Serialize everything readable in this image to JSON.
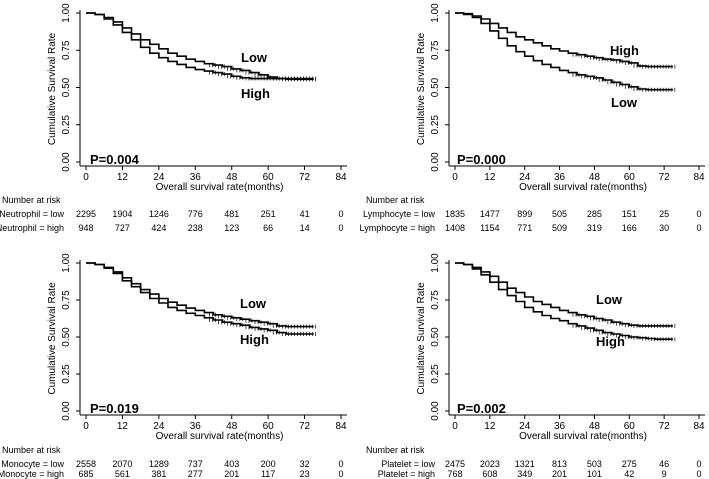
{
  "chart_data": [
    {
      "type": "line",
      "title": "",
      "xlabel": "Overall survival rate(months)",
      "ylabel": "Cumulative Survival Rate",
      "xlim": [
        0,
        84
      ],
      "ylim": [
        0,
        1
      ],
      "x_ticks": [
        "0",
        "12",
        "24",
        "36",
        "48",
        "60",
        "72",
        "84"
      ],
      "y_ticks": [
        "0.00",
        "0.25",
        "0.50",
        "0.75",
        "1.00"
      ],
      "p_value": "P=0.004",
      "series": [
        {
          "name": "Low",
          "label": "Low",
          "x": [
            0,
            3,
            6,
            9,
            12,
            15,
            18,
            21,
            24,
            27,
            30,
            33,
            36,
            39,
            42,
            45,
            48,
            51,
            54,
            57,
            60,
            63,
            66,
            69,
            72,
            75
          ],
          "y": [
            1.0,
            0.99,
            0.97,
            0.94,
            0.9,
            0.86,
            0.82,
            0.79,
            0.76,
            0.73,
            0.71,
            0.69,
            0.675,
            0.66,
            0.65,
            0.64,
            0.625,
            0.615,
            0.6,
            0.585,
            0.57,
            0.56,
            0.555,
            0.555,
            0.555,
            0.555
          ]
        },
        {
          "name": "High",
          "label": "High",
          "x": [
            0,
            3,
            6,
            9,
            12,
            15,
            18,
            21,
            24,
            27,
            30,
            33,
            36,
            39,
            42,
            45,
            48,
            51,
            54,
            57,
            60,
            63,
            66,
            69,
            72,
            75
          ],
          "y": [
            1.0,
            0.99,
            0.96,
            0.92,
            0.87,
            0.82,
            0.77,
            0.73,
            0.7,
            0.675,
            0.655,
            0.635,
            0.62,
            0.61,
            0.6,
            0.59,
            0.575,
            0.565,
            0.56,
            0.56,
            0.56,
            0.56,
            0.56,
            0.56,
            0.56,
            0.56
          ]
        }
      ],
      "risk_table": {
        "header": "Number at risk",
        "rows": [
          {
            "label": "Neutrophil = low",
            "counts": [
              "2295",
              "1904",
              "1246",
              "776",
              "481",
              "251",
              "41",
              "0"
            ]
          },
          {
            "label": "Neutrophil = high",
            "counts": [
              "948",
              "727",
              "424",
              "238",
              "123",
              "66",
              "14",
              "0"
            ]
          }
        ]
      }
    },
    {
      "type": "line",
      "title": "",
      "xlabel": "Overall survival rate(months)",
      "ylabel": "Cumulative Survival Rate",
      "xlim": [
        0,
        84
      ],
      "ylim": [
        0,
        1
      ],
      "x_ticks": [
        "0",
        "12",
        "24",
        "36",
        "48",
        "60",
        "72",
        "84"
      ],
      "y_ticks": [
        "0.00",
        "0.25",
        "0.50",
        "0.75",
        "1.00"
      ],
      "p_value": "P=0.000",
      "series": [
        {
          "name": "High",
          "label": "High",
          "x": [
            0,
            3,
            6,
            9,
            12,
            15,
            18,
            21,
            24,
            27,
            30,
            33,
            36,
            39,
            42,
            45,
            48,
            51,
            54,
            57,
            60,
            63,
            66,
            69,
            72,
            75
          ],
          "y": [
            1.0,
            0.995,
            0.98,
            0.96,
            0.93,
            0.9,
            0.87,
            0.84,
            0.82,
            0.8,
            0.78,
            0.76,
            0.745,
            0.73,
            0.72,
            0.71,
            0.7,
            0.69,
            0.685,
            0.675,
            0.665,
            0.645,
            0.64,
            0.64,
            0.64,
            0.64
          ]
        },
        {
          "name": "Low",
          "label": "Low",
          "x": [
            0,
            3,
            6,
            9,
            12,
            15,
            18,
            21,
            24,
            27,
            30,
            33,
            36,
            39,
            42,
            45,
            48,
            51,
            54,
            57,
            60,
            63,
            66,
            69,
            72,
            75
          ],
          "y": [
            1.0,
            0.99,
            0.97,
            0.93,
            0.88,
            0.83,
            0.78,
            0.74,
            0.71,
            0.68,
            0.655,
            0.635,
            0.615,
            0.6,
            0.585,
            0.575,
            0.565,
            0.55,
            0.535,
            0.52,
            0.505,
            0.49,
            0.485,
            0.485,
            0.485,
            0.485
          ]
        }
      ],
      "risk_table": {
        "header": "Number at risk",
        "rows": [
          {
            "label": "Lymphocyte = low",
            "counts": [
              "1835",
              "1477",
              "899",
              "505",
              "285",
              "151",
              "25",
              "0"
            ]
          },
          {
            "label": "Lymphocyte = high",
            "counts": [
              "1408",
              "1154",
              "771",
              "509",
              "319",
              "166",
              "30",
              "0"
            ]
          }
        ]
      }
    },
    {
      "type": "line",
      "title": "",
      "xlabel": "Overall survival rate(months)",
      "ylabel": "Cumulative Survival Rate",
      "xlim": [
        0,
        84
      ],
      "ylim": [
        0,
        1
      ],
      "x_ticks": [
        "0",
        "12",
        "24",
        "36",
        "48",
        "60",
        "72",
        "84"
      ],
      "y_ticks": [
        "0.00",
        "0.25",
        "0.50",
        "0.75",
        "1.00"
      ],
      "p_value": "P=0.019",
      "series": [
        {
          "name": "Low",
          "label": "Low",
          "x": [
            0,
            3,
            6,
            9,
            12,
            15,
            18,
            21,
            24,
            27,
            30,
            33,
            36,
            39,
            42,
            45,
            48,
            51,
            54,
            57,
            60,
            63,
            66,
            69,
            72,
            75
          ],
          "y": [
            1.0,
            0.99,
            0.97,
            0.94,
            0.9,
            0.86,
            0.82,
            0.79,
            0.76,
            0.735,
            0.715,
            0.695,
            0.68,
            0.665,
            0.65,
            0.64,
            0.63,
            0.62,
            0.61,
            0.6,
            0.59,
            0.575,
            0.57,
            0.57,
            0.57,
            0.57
          ]
        },
        {
          "name": "High",
          "label": "High",
          "x": [
            0,
            3,
            6,
            9,
            12,
            15,
            18,
            21,
            24,
            27,
            30,
            33,
            36,
            39,
            42,
            45,
            48,
            51,
            54,
            57,
            60,
            63,
            66,
            69,
            72,
            75
          ],
          "y": [
            1.0,
            0.99,
            0.965,
            0.93,
            0.88,
            0.84,
            0.8,
            0.76,
            0.73,
            0.7,
            0.68,
            0.66,
            0.645,
            0.63,
            0.615,
            0.6,
            0.59,
            0.58,
            0.565,
            0.555,
            0.545,
            0.53,
            0.52,
            0.52,
            0.52,
            0.52
          ]
        }
      ],
      "risk_table": {
        "header": "Number at risk",
        "rows": [
          {
            "label": "Monocyte = low",
            "counts": [
              "2558",
              "2070",
              "1289",
              "737",
              "403",
              "200",
              "32",
              "0"
            ]
          },
          {
            "label": "Monocyte = high",
            "counts": [
              "685",
              "561",
              "381",
              "277",
              "201",
              "117",
              "23",
              "0"
            ]
          }
        ]
      }
    },
    {
      "type": "line",
      "title": "",
      "xlabel": "Overall survival rate(months)",
      "ylabel": "Cumulative Survival Rate",
      "xlim": [
        0,
        84
      ],
      "ylim": [
        0,
        1
      ],
      "x_ticks": [
        "0",
        "12",
        "24",
        "36",
        "48",
        "60",
        "72",
        "84"
      ],
      "y_ticks": [
        "0.00",
        "0.25",
        "0.50",
        "0.75",
        "1.00"
      ],
      "p_value": "P=0.002",
      "series": [
        {
          "name": "Low",
          "label": "Low",
          "x": [
            0,
            3,
            6,
            9,
            12,
            15,
            18,
            21,
            24,
            27,
            30,
            33,
            36,
            39,
            42,
            45,
            48,
            51,
            54,
            57,
            60,
            63,
            66,
            69,
            72,
            75
          ],
          "y": [
            1.0,
            0.99,
            0.97,
            0.94,
            0.91,
            0.87,
            0.83,
            0.8,
            0.77,
            0.74,
            0.72,
            0.7,
            0.68,
            0.665,
            0.65,
            0.64,
            0.625,
            0.615,
            0.6,
            0.59,
            0.58,
            0.575,
            0.575,
            0.575,
            0.575,
            0.575
          ]
        },
        {
          "name": "High",
          "label": "High",
          "x": [
            0,
            3,
            6,
            9,
            12,
            15,
            18,
            21,
            24,
            27,
            30,
            33,
            36,
            39,
            42,
            45,
            48,
            51,
            54,
            57,
            60,
            63,
            66,
            69,
            72,
            75
          ],
          "y": [
            1.0,
            0.99,
            0.96,
            0.92,
            0.87,
            0.82,
            0.78,
            0.74,
            0.7,
            0.67,
            0.645,
            0.625,
            0.61,
            0.59,
            0.575,
            0.56,
            0.545,
            0.53,
            0.52,
            0.51,
            0.5,
            0.495,
            0.49,
            0.485,
            0.485,
            0.485
          ]
        }
      ],
      "risk_table": {
        "header": "Number at risk",
        "rows": [
          {
            "label": "Platelet = low",
            "counts": [
              "2475",
              "2023",
              "1321",
              "813",
              "503",
              "275",
              "46",
              "0"
            ]
          },
          {
            "label": "Platelet = high",
            "counts": [
              "768",
              "608",
              "349",
              "201",
              "101",
              "42",
              "9",
              "0"
            ]
          }
        ]
      }
    }
  ]
}
